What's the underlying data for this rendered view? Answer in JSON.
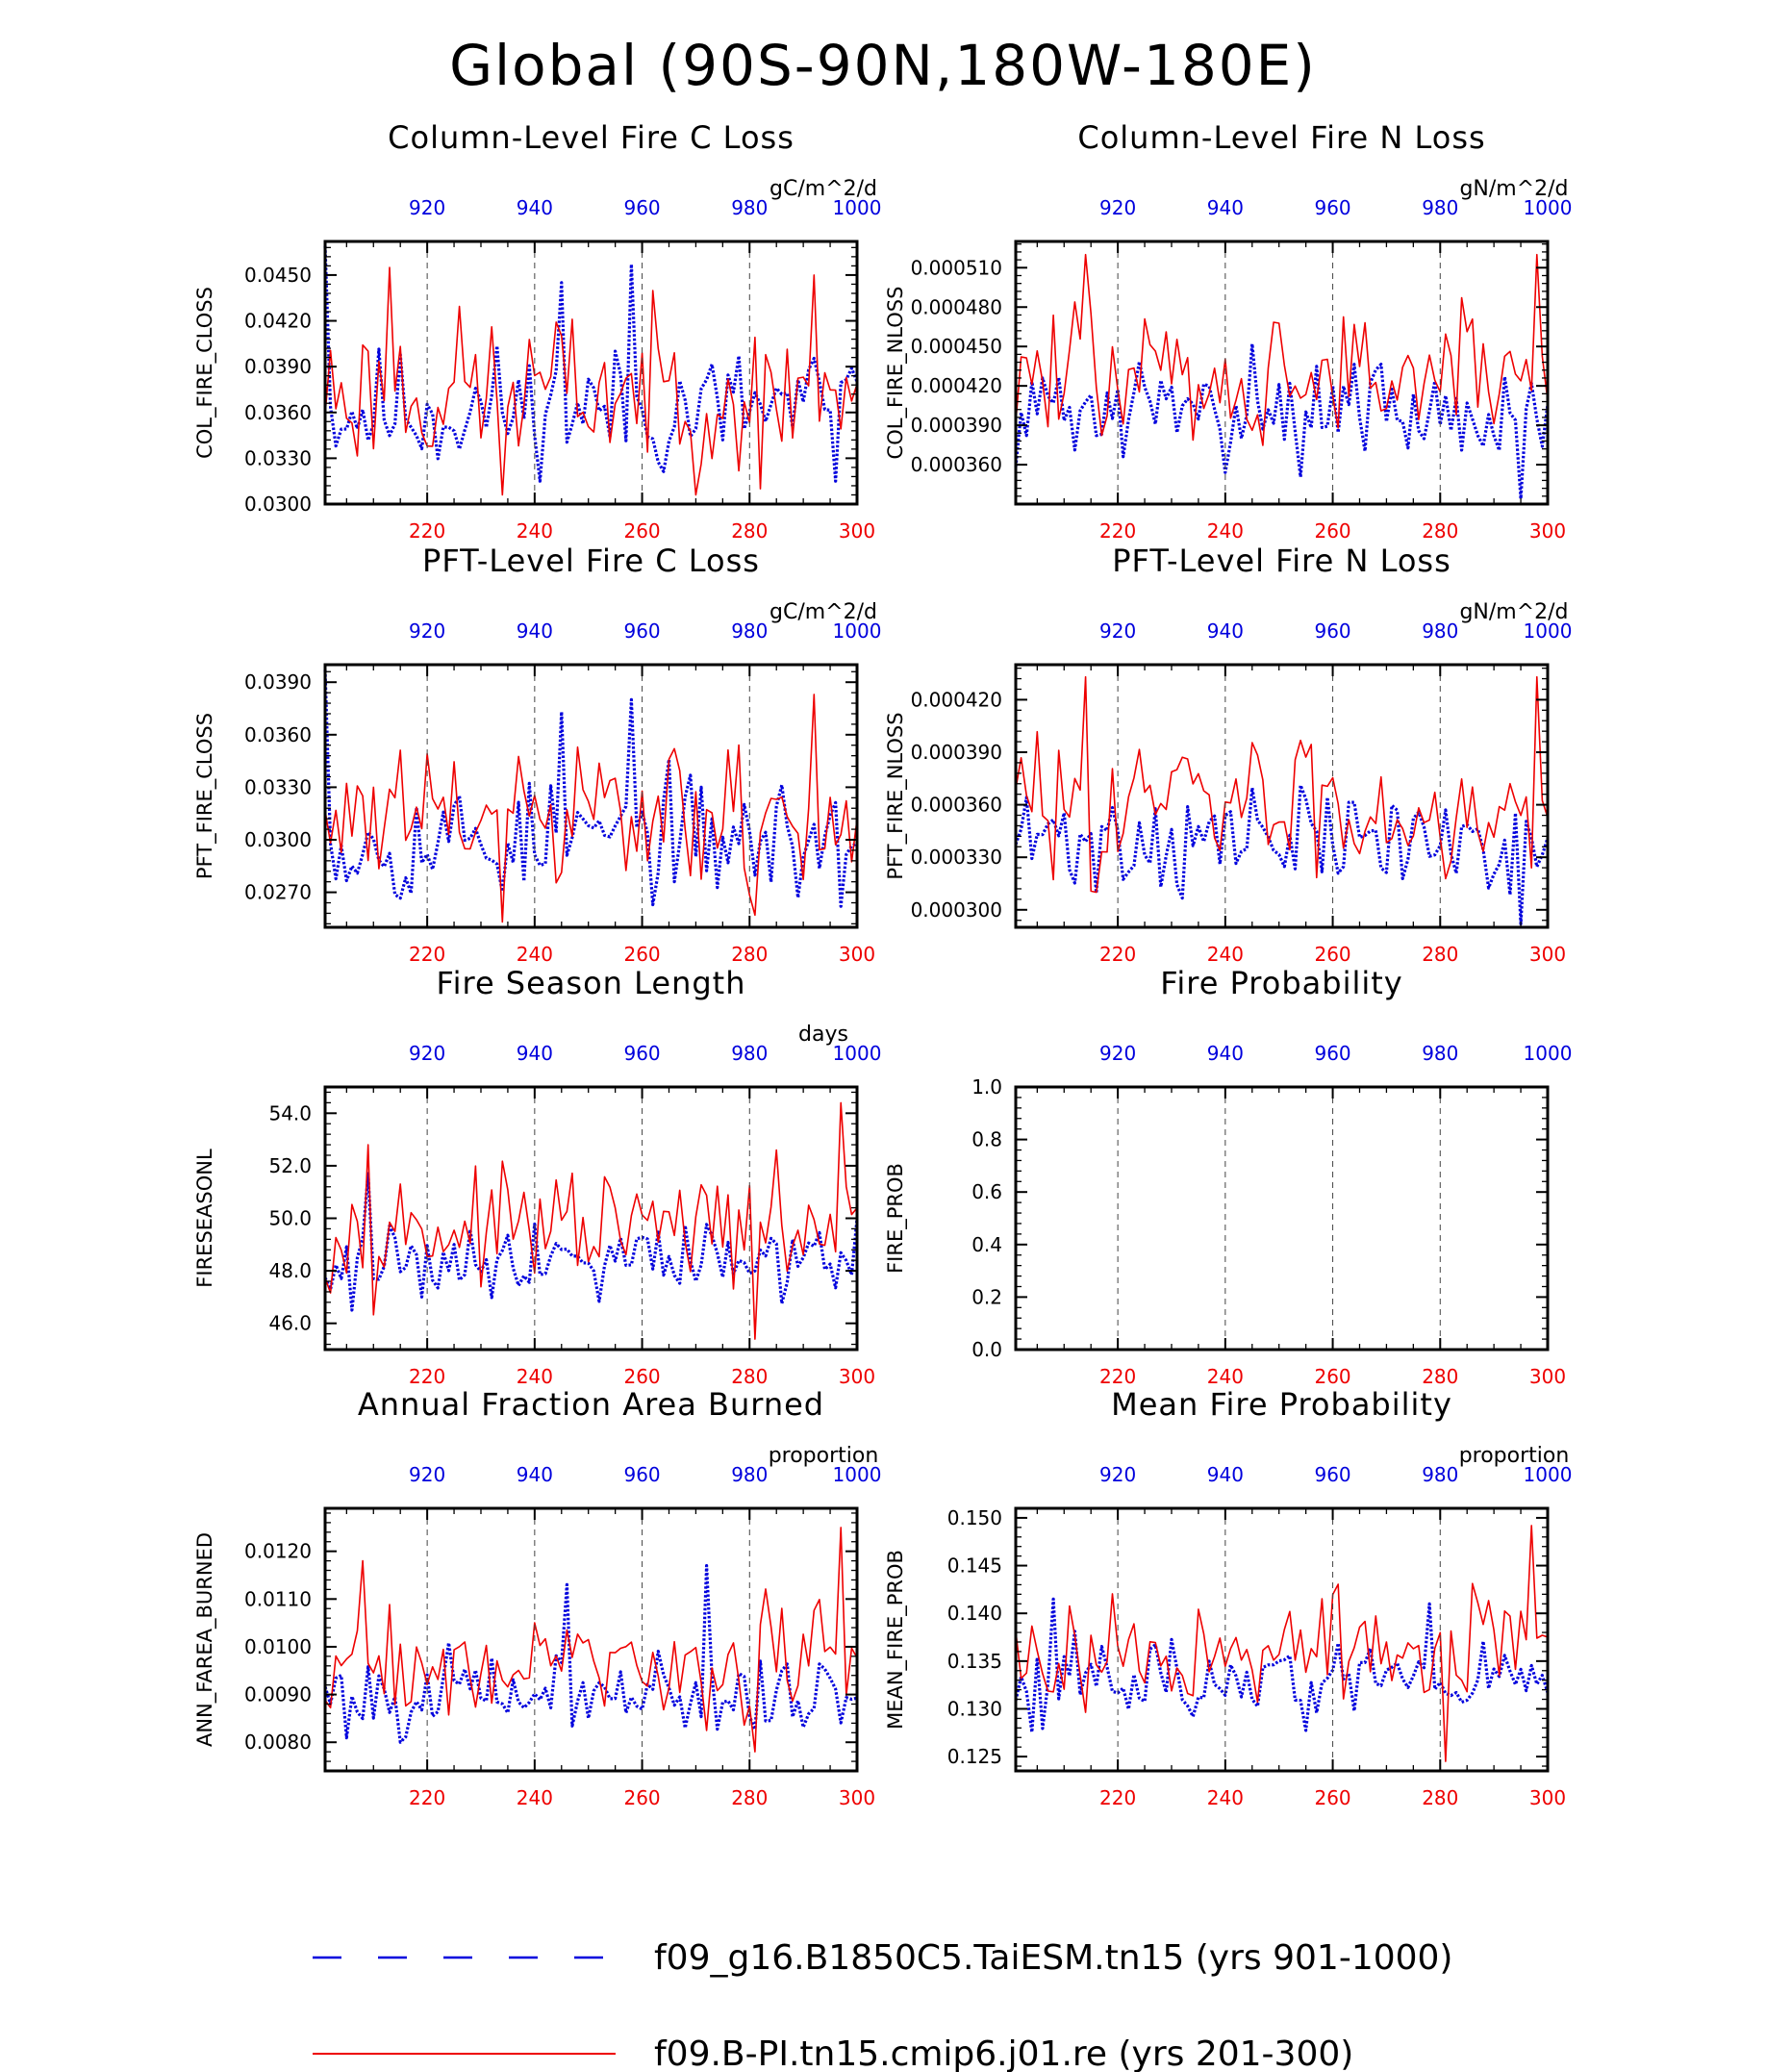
{
  "figure_title": "Global (90S-90N,180W-180E)",
  "colors": {
    "case1": "#0000dd",
    "case2": "#ee0000",
    "axis": "#000000",
    "grid": "#444444"
  },
  "legend": [
    {
      "label": "f09_g16.B1850C5.TaiESM.tn15 (yrs 901-1000)",
      "style": "dashed",
      "color": "#0000dd"
    },
    {
      "label": "f09.B-PI.tn15.cmip6.j01.re (yrs 201-300)",
      "style": "solid",
      "color": "#ee0000"
    }
  ],
  "chart_data": [
    {
      "type": "line",
      "title": "Column-Level Fire C Loss",
      "units": "gC/m^2/d",
      "ylabel": "COL_FIRE_CLOSS",
      "ylim": [
        0.03,
        0.0472
      ],
      "yticks": [
        "0.0300",
        "0.0330",
        "0.0360",
        "0.0390",
        "0.0420",
        "0.0450"
      ],
      "xlim_bottom": [
        201,
        300
      ],
      "xticks_bottom": [
        "220",
        "240",
        "260",
        "280",
        "300"
      ],
      "xlim_top": [
        901,
        1000
      ],
      "xticks_top": [
        "920",
        "940",
        "960",
        "980",
        "1000"
      ],
      "series": [
        {
          "name": "f09_g16.B1850C5.TaiESM.tn15 (yrs 901-1000)",
          "color": "#0000dd",
          "style": "dotted",
          "x_start": 901,
          "y_base": 0.0362,
          "y_amp": 0.0024,
          "y_min": 0.0315,
          "y_max": 0.0469,
          "seed": 11,
          "peaks": [
            [
              901,
              0.0469
            ],
            [
              945,
              0.0445
            ],
            [
              958,
              0.0457
            ],
            [
              996,
              0.0315
            ]
          ]
        },
        {
          "name": "f09.B-PI.tn15.cmip6.j01.re (yrs 201-300)",
          "color": "#ee0000",
          "style": "solid",
          "x_start": 201,
          "y_base": 0.0375,
          "y_amp": 0.003,
          "y_min": 0.0306,
          "y_max": 0.0455,
          "seed": 23,
          "peaks": [
            [
              213,
              0.0455
            ],
            [
              234,
              0.0306
            ],
            [
              282,
              0.031
            ],
            [
              292,
              0.045
            ]
          ]
        }
      ]
    },
    {
      "type": "line",
      "title": "Column-Level Fire N Loss",
      "units": "gN/m^2/d",
      "ylabel": "COL_FIRE_NLOSS",
      "ylim": [
        0.00033,
        0.00053
      ],
      "yticks": [
        "0.000360",
        "0.000390",
        "0.000420",
        "0.000450",
        "0.000480",
        "0.000510"
      ],
      "xlim_bottom": [
        201,
        300
      ],
      "xticks_bottom": [
        "220",
        "240",
        "260",
        "280",
        "300"
      ],
      "xlim_top": [
        901,
        1000
      ],
      "xticks_top": [
        "920",
        "940",
        "960",
        "980",
        "1000"
      ],
      "series": [
        {
          "name": "f09_g16.B1850C5.TaiESM.tn15 (yrs 901-1000)",
          "color": "#0000dd",
          "style": "dotted",
          "x_start": 901,
          "y_base": 0.0004,
          "y_amp": 2.2e-05,
          "y_min": 0.000334,
          "y_max": 0.000455,
          "seed": 31,
          "peaks": [
            [
              945,
              0.000452
            ],
            [
              995,
              0.000334
            ]
          ]
        },
        {
          "name": "f09.B-PI.tn15.cmip6.j01.re (yrs 201-300)",
          "color": "#ee0000",
          "style": "solid",
          "x_start": 201,
          "y_base": 0.000428,
          "y_amp": 3e-05,
          "y_min": 0.00037,
          "y_max": 0.00052,
          "seed": 47,
          "peaks": [
            [
              214,
              0.00052
            ],
            [
              298,
              0.00052
            ]
          ]
        }
      ]
    },
    {
      "type": "line",
      "title": "PFT-Level Fire C Loss",
      "units": "gC/m^2/d",
      "ylabel": "PFT_FIRE_CLOSS",
      "ylim": [
        0.025,
        0.04
      ],
      "yticks": [
        "0.0270",
        "0.0300",
        "0.0330",
        "0.0360",
        "0.0390"
      ],
      "xlim_bottom": [
        201,
        300
      ],
      "xticks_bottom": [
        "220",
        "240",
        "260",
        "280",
        "300"
      ],
      "xlim_top": [
        901,
        1000
      ],
      "xticks_top": [
        "920",
        "940",
        "960",
        "980",
        "1000"
      ],
      "series": [
        {
          "name": "f09_g16.B1850C5.TaiESM.tn15 (yrs 901-1000)",
          "color": "#0000dd",
          "style": "dotted",
          "x_start": 901,
          "y_base": 0.03,
          "y_amp": 0.002,
          "y_min": 0.0262,
          "y_max": 0.0397,
          "seed": 53,
          "peaks": [
            [
              901,
              0.0397
            ],
            [
              945,
              0.0373
            ],
            [
              958,
              0.038
            ],
            [
              997,
              0.0262
            ]
          ]
        },
        {
          "name": "f09.B-PI.tn15.cmip6.j01.re (yrs 201-300)",
          "color": "#ee0000",
          "style": "solid",
          "x_start": 201,
          "y_base": 0.031,
          "y_amp": 0.0025,
          "y_min": 0.0253,
          "y_max": 0.0383,
          "seed": 61,
          "peaks": [
            [
              234,
              0.0253
            ],
            [
              281,
              0.0257
            ],
            [
              292,
              0.0383
            ]
          ]
        }
      ]
    },
    {
      "type": "line",
      "title": "PFT-Level Fire N Loss",
      "units": "gN/m^2/d",
      "ylabel": "PFT_FIRE_NLOSS",
      "ylim": [
        0.00029,
        0.00044
      ],
      "yticks": [
        "0.000300",
        "0.000330",
        "0.000360",
        "0.000390",
        "0.000420"
      ],
      "xlim_bottom": [
        201,
        300
      ],
      "xticks_bottom": [
        "220",
        "240",
        "260",
        "280",
        "300"
      ],
      "xlim_top": [
        901,
        1000
      ],
      "xticks_top": [
        "920",
        "940",
        "960",
        "980",
        "1000"
      ],
      "series": [
        {
          "name": "f09_g16.B1850C5.TaiESM.tn15 (yrs 901-1000)",
          "color": "#0000dd",
          "style": "dotted",
          "x_start": 901,
          "y_base": 0.00034,
          "y_amp": 1.8e-05,
          "y_min": 0.000292,
          "y_max": 0.000385,
          "seed": 71,
          "peaks": [
            [
              995,
              0.000292
            ]
          ]
        },
        {
          "name": "f09.B-PI.tn15.cmip6.j01.re (yrs 201-300)",
          "color": "#ee0000",
          "style": "solid",
          "x_start": 201,
          "y_base": 0.00036,
          "y_amp": 2.4e-05,
          "y_min": 0.00031,
          "y_max": 0.000433,
          "seed": 83,
          "peaks": [
            [
              214,
              0.000433
            ],
            [
              298,
              0.000433
            ]
          ]
        }
      ]
    },
    {
      "type": "line",
      "title": "Fire Season Length",
      "units": "days",
      "ylabel": "FIRESEASONL",
      "ylim": [
        45.0,
        55.0
      ],
      "yticks": [
        "46.0",
        "48.0",
        "50.0",
        "52.0",
        "54.0"
      ],
      "xlim_bottom": [
        201,
        300
      ],
      "xticks_bottom": [
        "220",
        "240",
        "260",
        "280",
        "300"
      ],
      "xlim_top": [
        901,
        1000
      ],
      "xticks_top": [
        "920",
        "940",
        "960",
        "980",
        "1000"
      ],
      "series": [
        {
          "name": "f09_g16.B1850C5.TaiESM.tn15 (yrs 901-1000)",
          "color": "#0000dd",
          "style": "dotted",
          "x_start": 901,
          "y_base": 48.6,
          "y_amp": 0.9,
          "y_min": 46.5,
          "y_max": 51.7,
          "seed": 91,
          "peaks": [
            [
              909,
              51.7
            ],
            [
              906,
              46.5
            ]
          ]
        },
        {
          "name": "f09.B-PI.tn15.cmip6.j01.re (yrs 201-300)",
          "color": "#ee0000",
          "style": "solid",
          "x_start": 201,
          "y_base": 49.6,
          "y_amp": 1.2,
          "y_min": 45.4,
          "y_max": 54.4,
          "seed": 97,
          "peaks": [
            [
              209,
              52.8
            ],
            [
              281,
              45.4
            ],
            [
              297,
              54.4
            ]
          ]
        }
      ]
    },
    {
      "type": "line",
      "title": "Fire Probability",
      "units": "",
      "ylabel": "FIRE_PROB",
      "ylim": [
        0.0,
        1.0
      ],
      "yticks": [
        "0.0",
        "0.2",
        "0.4",
        "0.6",
        "0.8",
        "1.0"
      ],
      "xlim_bottom": [
        201,
        300
      ],
      "xticks_bottom": [
        "220",
        "240",
        "260",
        "280",
        "300"
      ],
      "xlim_top": [
        901,
        1000
      ],
      "xticks_top": [
        "920",
        "940",
        "960",
        "980",
        "1000"
      ],
      "series": []
    },
    {
      "type": "line",
      "title": "Annual Fraction Area Burned",
      "units": "proportion",
      "ylabel": "ANN_FAREA_BURNED",
      "ylim": [
        0.0074,
        0.0129
      ],
      "yticks": [
        "0.0080",
        "0.0090",
        "0.0100",
        "0.0110",
        "0.0120"
      ],
      "xlim_bottom": [
        201,
        300
      ],
      "xticks_bottom": [
        "220",
        "240",
        "260",
        "280",
        "300"
      ],
      "xlim_top": [
        901,
        1000
      ],
      "xticks_top": [
        "920",
        "940",
        "960",
        "980",
        "1000"
      ],
      "series": [
        {
          "name": "f09_g16.B1850C5.TaiESM.tn15 (yrs 901-1000)",
          "color": "#0000dd",
          "style": "dotted",
          "x_start": 901,
          "y_base": 0.009,
          "y_amp": 0.0005,
          "y_min": 0.008,
          "y_max": 0.0117,
          "seed": 101,
          "peaks": [
            [
              946,
              0.0113
            ],
            [
              972,
              0.0117
            ]
          ]
        },
        {
          "name": "f09.B-PI.tn15.cmip6.j01.re (yrs 201-300)",
          "color": "#ee0000",
          "style": "solid",
          "x_start": 201,
          "y_base": 0.0096,
          "y_amp": 0.0007,
          "y_min": 0.0078,
          "y_max": 0.0125,
          "seed": 109,
          "peaks": [
            [
              208,
              0.0118
            ],
            [
              281,
              0.0078
            ],
            [
              297,
              0.0125
            ]
          ]
        }
      ]
    },
    {
      "type": "line",
      "title": "Mean Fire Probability",
      "units": "proportion",
      "ylabel": "MEAN_FIRE_PROB",
      "ylim": [
        0.1235,
        0.151
      ],
      "yticks": [
        "0.125",
        "0.130",
        "0.135",
        "0.140",
        "0.145",
        "0.150"
      ],
      "xlim_bottom": [
        201,
        300
      ],
      "xticks_bottom": [
        "220",
        "240",
        "260",
        "280",
        "300"
      ],
      "xlim_top": [
        901,
        1000
      ],
      "xticks_top": [
        "920",
        "940",
        "960",
        "980",
        "1000"
      ],
      "series": [
        {
          "name": "f09_g16.B1850C5.TaiESM.tn15 (yrs 901-1000)",
          "color": "#0000dd",
          "style": "dotted",
          "x_start": 901,
          "y_base": 0.133,
          "y_amp": 0.0025,
          "y_min": 0.1275,
          "y_max": 0.1415,
          "seed": 113,
          "peaks": [
            [
              908,
              0.1415
            ],
            [
              978,
              0.141
            ]
          ]
        },
        {
          "name": "f09.B-PI.tn15.cmip6.j01.re (yrs 201-300)",
          "color": "#ee0000",
          "style": "solid",
          "x_start": 201,
          "y_base": 0.136,
          "y_amp": 0.0035,
          "y_min": 0.1245,
          "y_max": 0.1492,
          "seed": 127,
          "peaks": [
            [
              281,
              0.1245
            ],
            [
              297,
              0.1492
            ]
          ]
        }
      ]
    }
  ]
}
